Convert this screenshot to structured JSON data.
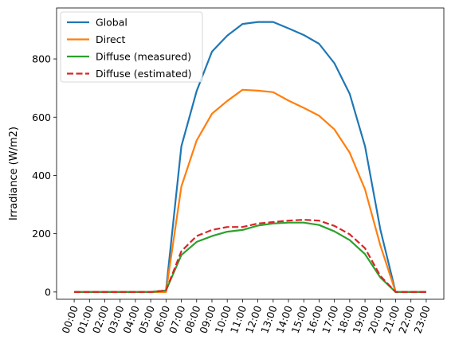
{
  "chart_data": {
    "type": "line",
    "title": "",
    "xlabel": "",
    "ylabel": "Irradiance (W/m2)",
    "categories": [
      "00:00",
      "01:00",
      "02:00",
      "03:00",
      "04:00",
      "05:00",
      "06:00",
      "07:00",
      "08:00",
      "09:00",
      "10:00",
      "11:00",
      "12:00",
      "13:00",
      "14:00",
      "15:00",
      "16:00",
      "17:00",
      "18:00",
      "19:00",
      "20:00",
      "21:00",
      "22:00",
      "23:00"
    ],
    "yticks": [
      0,
      200,
      400,
      600,
      800
    ],
    "ylim": [
      -25,
      975
    ],
    "grid": false,
    "legend_position": "top-left",
    "series": [
      {
        "name": "Global",
        "color": "#1f77b4",
        "dash": "solid",
        "values": [
          0,
          0,
          0,
          0,
          0,
          0,
          5,
          500,
          690,
          825,
          880,
          920,
          927,
          927,
          905,
          882,
          852,
          785,
          680,
          500,
          215,
          0,
          0,
          0
        ]
      },
      {
        "name": "Direct",
        "color": "#ff7f0e",
        "dash": "solid",
        "values": [
          0,
          0,
          0,
          0,
          0,
          0,
          0,
          362,
          520,
          612,
          656,
          694,
          691,
          686,
          657,
          632,
          605,
          558,
          478,
          352,
          160,
          0,
          0,
          0
        ]
      },
      {
        "name": "Diffuse (measured)",
        "color": "#2ca02c",
        "dash": "solid",
        "values": [
          0,
          0,
          0,
          0,
          0,
          0,
          5,
          127,
          172,
          192,
          207,
          213,
          228,
          235,
          238,
          238,
          230,
          208,
          178,
          130,
          50,
          0,
          0,
          0
        ]
      },
      {
        "name": "Diffuse (estimated)",
        "color": "#d62728",
        "dash": "dashed",
        "values": [
          0,
          0,
          0,
          0,
          0,
          0,
          5,
          140,
          192,
          213,
          223,
          223,
          235,
          240,
          245,
          248,
          245,
          227,
          198,
          150,
          55,
          0,
          0,
          0
        ]
      }
    ]
  }
}
